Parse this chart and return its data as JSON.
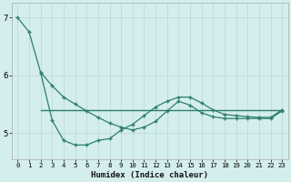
{
  "xlabel": "Humidex (Indice chaleur)",
  "background_color": "#d4eeed",
  "grid_color": "#b8d8d5",
  "line_color": "#2e7d6e",
  "xlim": [
    -0.5,
    23.5
  ],
  "ylim": [
    4.55,
    7.25
  ],
  "yticks": [
    5,
    6,
    7
  ],
  "xticks": [
    0,
    1,
    2,
    3,
    4,
    5,
    6,
    7,
    8,
    9,
    10,
    11,
    12,
    13,
    14,
    15,
    16,
    17,
    18,
    19,
    20,
    21,
    22,
    23
  ],
  "line1_x": [
    0,
    1,
    2,
    3,
    4,
    5,
    6,
    7,
    8,
    9,
    10,
    11,
    12,
    13,
    14,
    15,
    16,
    17,
    18,
    19,
    20,
    21,
    22,
    23
  ],
  "line1_y": [
    7.0,
    6.75,
    6.05,
    5.22,
    4.87,
    4.79,
    4.79,
    4.87,
    4.9,
    5.05,
    5.15,
    5.3,
    5.45,
    5.55,
    5.62,
    5.62,
    5.52,
    5.4,
    5.32,
    5.3,
    5.28,
    5.27,
    5.27,
    5.4
  ],
  "line2_x": [
    2,
    3,
    4,
    5,
    6,
    7,
    8,
    9,
    10,
    11,
    12,
    13,
    14,
    15,
    16,
    17,
    18,
    19,
    20,
    21,
    22,
    23
  ],
  "line2_y": [
    6.05,
    5.82,
    5.62,
    5.5,
    5.38,
    5.27,
    5.17,
    5.1,
    5.05,
    5.1,
    5.2,
    5.38,
    5.55,
    5.48,
    5.35,
    5.28,
    5.25,
    5.25,
    5.25,
    5.25,
    5.25,
    5.38
  ],
  "line3_x": [
    2,
    23
  ],
  "line3_y": [
    5.4,
    5.4
  ]
}
